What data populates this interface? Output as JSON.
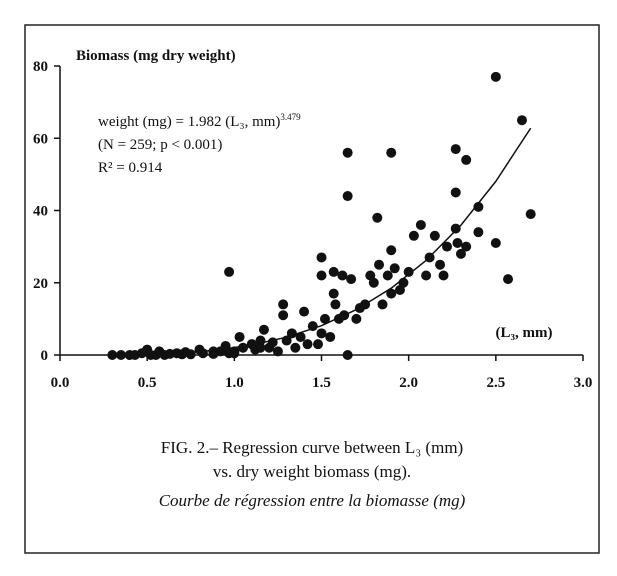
{
  "chart_data": {
    "type": "scatter",
    "y_label": "Biomass (mg dry weight)",
    "x_label": "(L₃, mm)",
    "annotations": {
      "equation": "weight (mg) = 1.982 (L₃, mm)",
      "exponent": "3.479",
      "stats": "(N = 259; p < 0.001)",
      "r2": "R² = 0.914"
    },
    "caption": {
      "line1": "FIG. 2.– Regression curve between L₃ (mm)",
      "line2": "vs. dry weight biomass (mg).",
      "line3": "Courbe de régression entre la biomasse (mg)"
    },
    "xlim": [
      0,
      3
    ],
    "ylim": [
      0,
      80
    ],
    "xticks": [
      {
        "value": 0,
        "label": "0.0"
      },
      0.5,
      {
        "value": 1,
        "label": "1.0"
      },
      1.5,
      {
        "value": 2,
        "label": "2.0"
      },
      2.5,
      {
        "value": 3,
        "label": "3.0"
      }
    ],
    "yticks": [
      0,
      20,
      40,
      60,
      80
    ],
    "grid": false,
    "color": "#111111",
    "x": [
      0.3,
      0.35,
      0.4,
      0.43,
      0.47,
      0.5,
      0.52,
      0.55,
      0.57,
      0.6,
      0.63,
      0.67,
      0.7,
      0.72,
      0.75,
      0.8,
      0.82,
      0.88,
      0.92,
      0.95,
      0.97,
      1.0,
      1.03,
      1.05,
      1.1,
      1.12,
      1.15,
      1.17,
      1.2,
      1.22,
      1.25,
      1.28,
      1.28,
      1.3,
      1.33,
      1.35,
      1.38,
      1.4,
      1.42,
      1.45,
      1.48,
      1.5,
      1.5,
      1.5,
      1.52,
      1.55,
      1.57,
      1.57,
      1.58,
      1.6,
      1.62,
      1.63,
      1.65,
      1.65,
      1.65,
      1.67,
      1.7,
      1.72,
      1.75,
      1.78,
      1.8,
      1.82,
      1.83,
      1.85,
      1.88,
      1.9,
      1.9,
      1.9,
      1.92,
      1.95,
      1.97,
      2.0,
      2.03,
      2.07,
      2.1,
      2.12,
      2.15,
      2.18,
      2.2,
      2.22,
      2.27,
      2.27,
      2.27,
      2.28,
      2.3,
      2.33,
      2.33,
      2.4,
      2.4,
      2.5,
      2.5,
      2.57,
      2.65,
      2.7,
      0.97,
      1.15,
      1.0,
      0.88
    ],
    "values": [
      0,
      0,
      0,
      0,
      0.5,
      1.5,
      0,
      0,
      1,
      0,
      0.3,
      0.5,
      0.2,
      0.8,
      0.2,
      1.5,
      0.5,
      0.3,
      1,
      2.5,
      0.5,
      1,
      5,
      2,
      3,
      1.5,
      4,
      7,
      2,
      3.5,
      1,
      14,
      11,
      4,
      6,
      2,
      5,
      12,
      3,
      8,
      3,
      27,
      22,
      6,
      10,
      5,
      23,
      17,
      14,
      10,
      22,
      11,
      0,
      56,
      44,
      21,
      10,
      13,
      14,
      22,
      20,
      38,
      25,
      14,
      22,
      56,
      29,
      17,
      24,
      18,
      20,
      23,
      33,
      36,
      22,
      27,
      33,
      25,
      22,
      30,
      57,
      45,
      35,
      31,
      28,
      54,
      30,
      41,
      34,
      77,
      31,
      21,
      65,
      39,
      23,
      2,
      0.5,
      1
    ],
    "fit_curve": {
      "x": [
        0.3,
        0.5,
        0.7,
        0.9,
        1.1,
        1.3,
        1.5,
        1.7,
        1.9,
        2.1,
        2.3,
        2.5,
        2.7
      ],
      "values": [
        0.03,
        0.18,
        0.57,
        1.37,
        2.76,
        4.94,
        8.12,
        12.56,
        18.49,
        26.19,
        35.95,
        48.05,
        62.8
      ]
    }
  }
}
